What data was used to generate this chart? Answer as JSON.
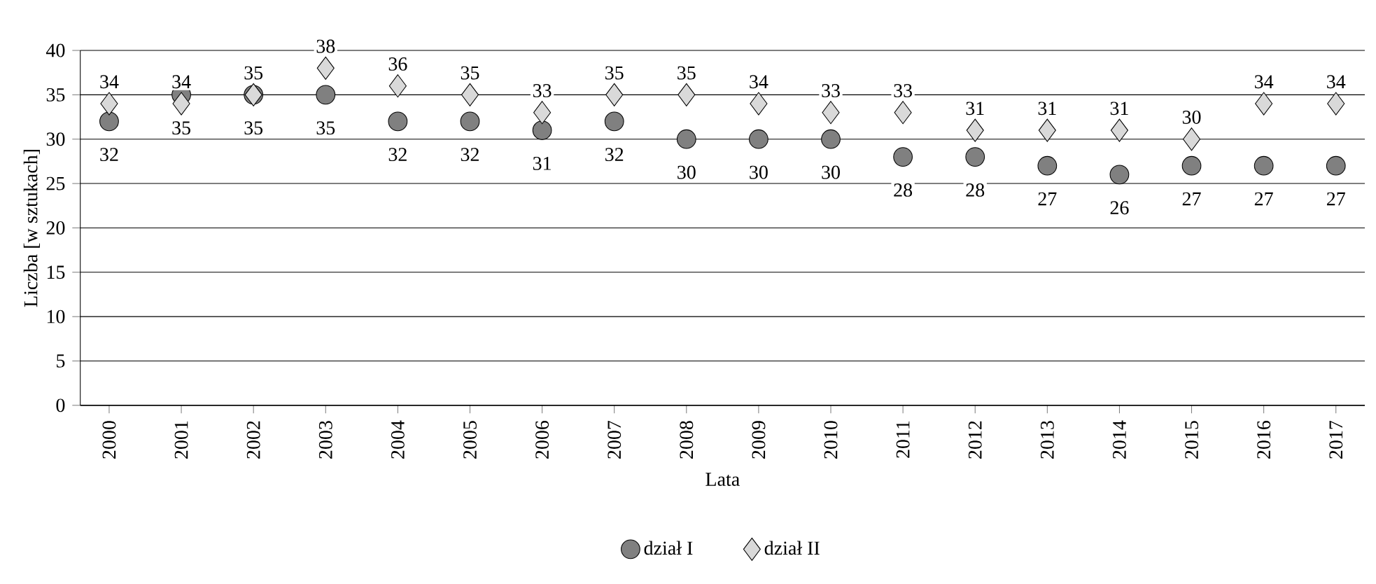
{
  "chart_data": {
    "type": "scatter",
    "xlabel": "Lata",
    "ylabel": "Liczba [w sztukach]",
    "categories": [
      "2000",
      "2001",
      "2002",
      "2003",
      "2004",
      "2005",
      "2006",
      "2007",
      "2008",
      "2009",
      "2010",
      "2011",
      "2012",
      "2013",
      "2014",
      "2015",
      "2016",
      "2017"
    ],
    "series": [
      {
        "name": "dział I",
        "color": "#808080",
        "marker": "circle",
        "values": [
          32,
          35,
          35,
          35,
          32,
          32,
          31,
          32,
          30,
          30,
          30,
          28,
          28,
          27,
          26,
          27,
          27,
          27
        ]
      },
      {
        "name": "dział II",
        "color": "#d9d9d9",
        "marker": "diamond",
        "values": [
          34,
          34,
          35,
          38,
          36,
          35,
          33,
          35,
          35,
          34,
          33,
          33,
          31,
          31,
          31,
          30,
          34,
          34
        ]
      }
    ],
    "ylim": [
      0,
      40
    ],
    "yticks": [
      0,
      5,
      10,
      15,
      20,
      25,
      30,
      35,
      40
    ],
    "grid": "y",
    "legend": "bottom",
    "data_labels": true
  }
}
